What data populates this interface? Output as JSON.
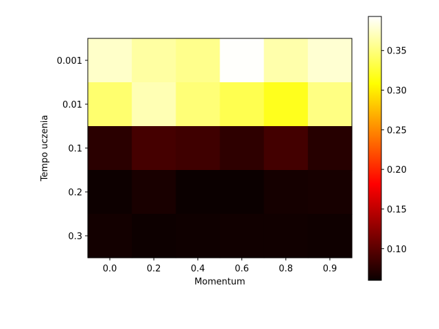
{
  "chart_data": {
    "type": "heatmap",
    "title": "",
    "xlabel": "Momentum",
    "ylabel": "Tempo uczenia",
    "x_categories": [
      "0.0",
      "0.2",
      "0.4",
      "0.6",
      "0.8",
      "0.9"
    ],
    "y_categories": [
      "0.001",
      "0.01",
      "0.1",
      "0.2",
      "0.3"
    ],
    "values": [
      [
        0.375,
        0.362,
        0.355,
        0.392,
        0.365,
        0.378
      ],
      [
        0.345,
        0.368,
        0.348,
        0.335,
        0.318,
        0.352
      ],
      [
        0.075,
        0.088,
        0.085,
        0.077,
        0.087,
        0.073
      ],
      [
        0.061,
        0.067,
        0.06,
        0.059,
        0.065,
        0.066
      ],
      [
        0.064,
        0.061,
        0.062,
        0.063,
        0.063,
        0.062
      ]
    ],
    "colormap": "hot",
    "vmin": 0.06,
    "vmax": 0.393,
    "colorbar": {
      "ticks": [
        0.1,
        0.15,
        0.2,
        0.25,
        0.3,
        0.35
      ],
      "tick_labels": [
        "0.10",
        "0.15",
        "0.20",
        "0.25",
        "0.30",
        "0.35"
      ]
    },
    "grid": false
  }
}
